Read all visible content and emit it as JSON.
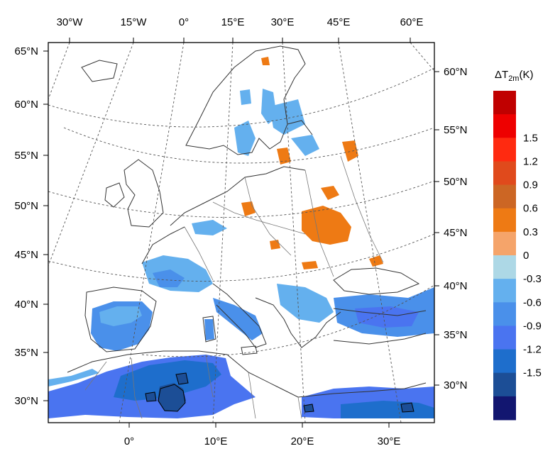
{
  "map": {
    "top_lon_labels": [
      "30°W",
      "15°W",
      "0°",
      "15°E",
      "30°E",
      "45°E",
      "60°E"
    ],
    "left_lat_labels": [
      "65°N",
      "60°N",
      "55°N",
      "50°N",
      "45°N",
      "40°N",
      "35°N",
      "30°N"
    ],
    "bottom_lon_labels": [
      "0°",
      "10°E",
      "20°E",
      "30°E"
    ],
    "right_lat_labels": [
      "60°N",
      "55°N",
      "50°N",
      "45°N",
      "40°N",
      "35°N",
      "30°N"
    ]
  },
  "colorbar": {
    "title_main": "ΔT",
    "title_sub": "2m",
    "title_unit": "(K)",
    "bins": [
      {
        "color": "#c00000"
      },
      {
        "color": "#ee0000"
      },
      {
        "color": "#ff2a10"
      },
      {
        "color": "#e04a1c"
      },
      {
        "color": "#cc6624"
      },
      {
        "color": "#ee7a14"
      },
      {
        "color": "#f5a46a"
      },
      {
        "color": "#add8e6"
      },
      {
        "color": "#64b0ee"
      },
      {
        "color": "#4a90ea"
      },
      {
        "color": "#4a74f0"
      },
      {
        "color": "#1e6ecc"
      },
      {
        "color": "#1c4e96"
      },
      {
        "color": "#121670"
      }
    ],
    "ticks": [
      "1.5",
      "1.2",
      "0.9",
      "0.6",
      "0.3",
      "0",
      "-0.3",
      "-0.6",
      "-0.9",
      "-1.2",
      "-1.5"
    ]
  },
  "colors": {
    "warm": "#ee7a14",
    "cool": "#64b0ee",
    "cold": "#4a74f0",
    "coldest": "#1e6ecc"
  }
}
